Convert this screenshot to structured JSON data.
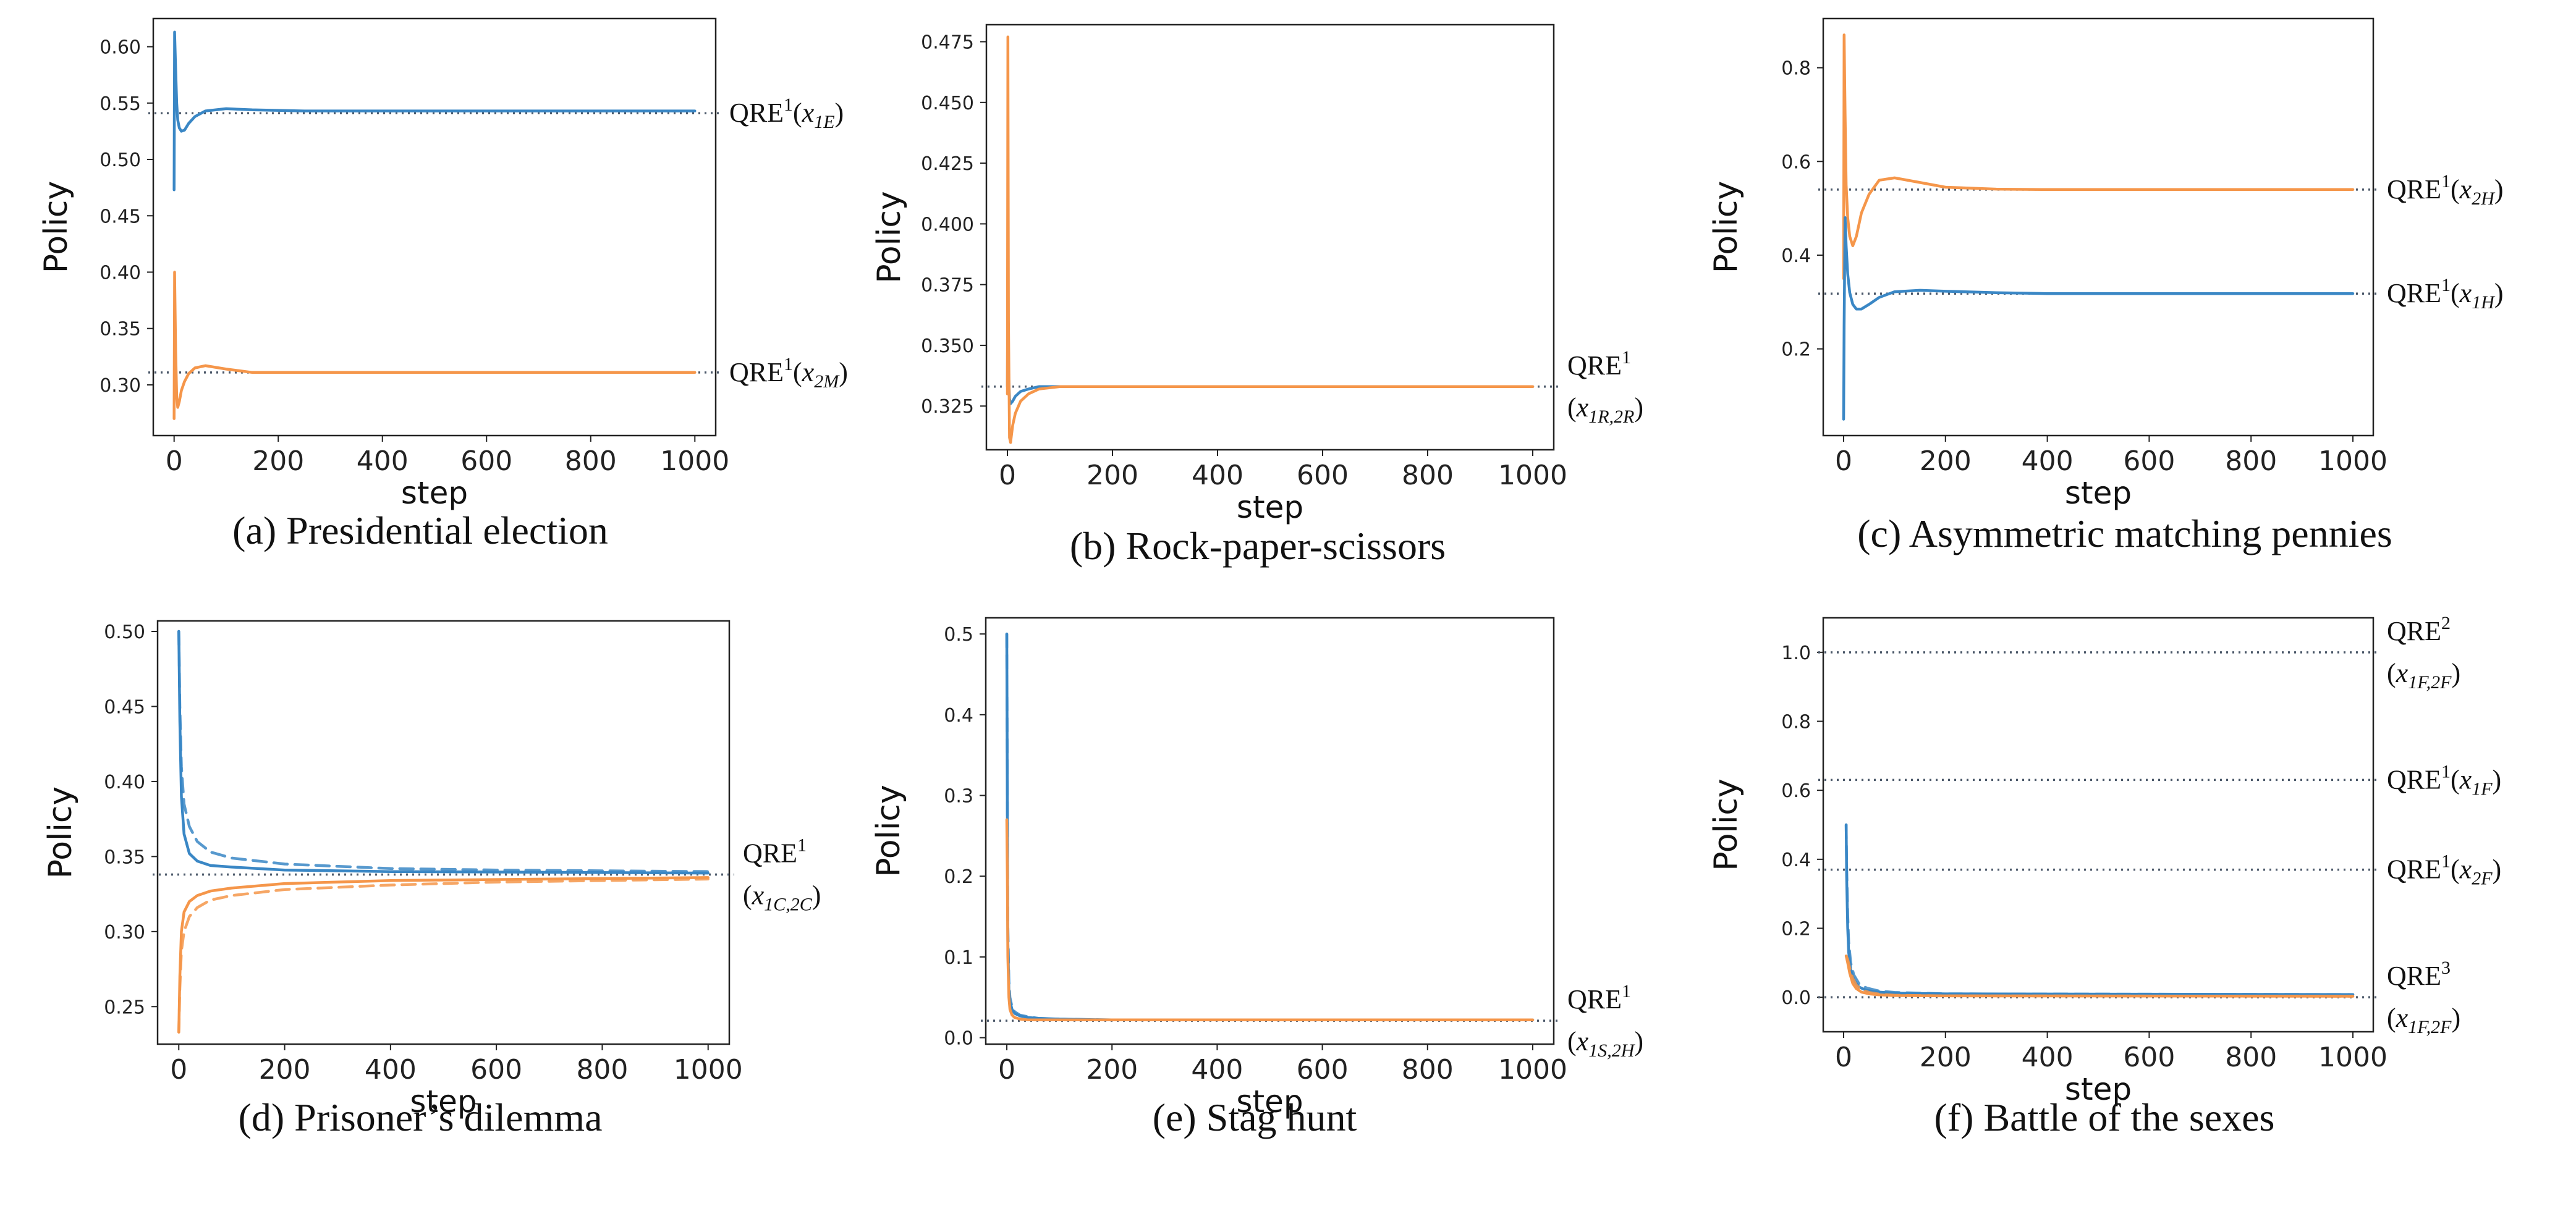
{
  "colors": {
    "blue": "#3a87c5",
    "orange": "#f5964a",
    "reference_line": "#4d5a6b",
    "frame": "#222222"
  },
  "chart_data": [
    {
      "id": "a",
      "type": "line",
      "caption": "(a) Presidential election",
      "xlabel": "step",
      "ylabel": "Policy",
      "xlim": [
        -40,
        1040
      ],
      "ylim": [
        0.255,
        0.625
      ],
      "xticks": [
        0,
        200,
        400,
        600,
        800,
        1000
      ],
      "yticks": [
        0.3,
        0.35,
        0.4,
        0.45,
        0.5,
        0.55,
        0.6
      ],
      "ytick_labels": [
        "0.30",
        "0.35",
        "0.40",
        "0.45",
        "0.50",
        "0.55",
        "0.60"
      ],
      "series": [
        {
          "color": "blue",
          "dash": false,
          "x": [
            0,
            1,
            3,
            5,
            7,
            10,
            14,
            20,
            28,
            40,
            60,
            100,
            150,
            250,
            400,
            1000
          ],
          "y": [
            0.473,
            0.613,
            0.58,
            0.55,
            0.535,
            0.528,
            0.525,
            0.526,
            0.532,
            0.538,
            0.543,
            0.545,
            0.544,
            0.543,
            0.543,
            0.543
          ]
        },
        {
          "color": "orange",
          "dash": false,
          "x": [
            0,
            1,
            3,
            5,
            7,
            10,
            14,
            20,
            28,
            40,
            60,
            100,
            150,
            250,
            400,
            1000
          ],
          "y": [
            0.27,
            0.4,
            0.33,
            0.29,
            0.28,
            0.285,
            0.295,
            0.303,
            0.31,
            0.315,
            0.317,
            0.314,
            0.311,
            0.311,
            0.311,
            0.311
          ]
        }
      ],
      "reference_lines": [
        {
          "y": 0.541,
          "label_parts": [
            "QRE",
            "1",
            "(",
            "x",
            "1E",
            ")"
          ]
        },
        {
          "y": 0.311,
          "label_parts": [
            "QRE",
            "1",
            "(",
            "x",
            "2M",
            ")"
          ]
        }
      ]
    },
    {
      "id": "b",
      "type": "line",
      "caption": "(b) Rock-paper-scissors",
      "xlabel": "step",
      "ylabel": "Policy",
      "xlim": [
        -40,
        1040
      ],
      "ylim": [
        0.307,
        0.482
      ],
      "xticks": [
        0,
        200,
        400,
        600,
        800,
        1000
      ],
      "yticks": [
        0.325,
        0.35,
        0.375,
        0.4,
        0.425,
        0.45,
        0.475
      ],
      "ytick_labels": [
        "0.325",
        "0.350",
        "0.375",
        "0.400",
        "0.425",
        "0.450",
        "0.475"
      ],
      "series": [
        {
          "color": "blue",
          "dash": false,
          "x": [
            0,
            1,
            2,
            4,
            6,
            10,
            15,
            25,
            40,
            60,
            100,
            200,
            1000
          ],
          "y": [
            0.333,
            0.38,
            0.34,
            0.328,
            0.326,
            0.327,
            0.329,
            0.331,
            0.332,
            0.333,
            0.333,
            0.333,
            0.333
          ]
        },
        {
          "color": "orange",
          "dash": false,
          "x": [
            0,
            1,
            2,
            4,
            6,
            10,
            15,
            25,
            40,
            60,
            100,
            200,
            1000
          ],
          "y": [
            0.33,
            0.477,
            0.36,
            0.312,
            0.31,
            0.317,
            0.322,
            0.327,
            0.33,
            0.332,
            0.333,
            0.333,
            0.333
          ]
        }
      ],
      "reference_lines": [
        {
          "y": 0.333,
          "label_lines": [
            [
              "QRE",
              "1"
            ],
            [
              "(",
              "x",
              "1R,2R",
              ")"
            ]
          ]
        }
      ]
    },
    {
      "id": "c",
      "type": "line",
      "caption": "(c) Asymmetric matching pennies",
      "xlabel": "step",
      "ylabel": "Policy",
      "xlim": [
        -40,
        1040
      ],
      "ylim": [
        0.015,
        0.905
      ],
      "xticks": [
        0,
        200,
        400,
        600,
        800,
        1000
      ],
      "yticks": [
        0.2,
        0.4,
        0.6,
        0.8
      ],
      "ytick_labels": [
        "0.2",
        "0.4",
        "0.6",
        "0.8"
      ],
      "series": [
        {
          "color": "orange",
          "dash": false,
          "x": [
            0,
            1,
            3,
            5,
            8,
            12,
            18,
            25,
            35,
            50,
            70,
            100,
            150,
            200,
            300,
            400,
            1000
          ],
          "y": [
            0.35,
            0.87,
            0.7,
            0.55,
            0.48,
            0.44,
            0.42,
            0.44,
            0.49,
            0.53,
            0.56,
            0.565,
            0.555,
            0.545,
            0.541,
            0.54,
            0.54
          ]
        },
        {
          "color": "blue",
          "dash": false,
          "x": [
            0,
            1,
            3,
            5,
            8,
            12,
            18,
            25,
            35,
            50,
            70,
            100,
            150,
            200,
            300,
            400,
            1000
          ],
          "y": [
            0.05,
            0.25,
            0.48,
            0.42,
            0.36,
            0.32,
            0.295,
            0.285,
            0.285,
            0.295,
            0.31,
            0.322,
            0.325,
            0.323,
            0.32,
            0.318,
            0.318
          ]
        }
      ],
      "reference_lines": [
        {
          "y": 0.54,
          "label_parts": [
            "QRE",
            "1",
            "(",
            "x",
            "2H",
            ")"
          ]
        },
        {
          "y": 0.318,
          "label_parts": [
            "QRE",
            "1",
            "(",
            "x",
            "1H",
            ")"
          ]
        }
      ]
    },
    {
      "id": "d",
      "type": "line",
      "caption": "(d) Prisoner’s dilemma",
      "xlabel": "step",
      "ylabel": "Policy",
      "xlim": [
        -40,
        1040
      ],
      "ylim": [
        0.225,
        0.507
      ],
      "xticks": [
        0,
        200,
        400,
        600,
        800,
        1000
      ],
      "yticks": [
        0.25,
        0.3,
        0.35,
        0.4,
        0.45,
        0.5
      ],
      "ytick_labels": [
        "0.25",
        "0.30",
        "0.35",
        "0.40",
        "0.45",
        "0.50"
      ],
      "series": [
        {
          "color": "blue",
          "dash": false,
          "x": [
            0,
            2,
            5,
            10,
            20,
            35,
            60,
            100,
            200,
            400,
            1000
          ],
          "y": [
            0.5,
            0.44,
            0.39,
            0.365,
            0.352,
            0.347,
            0.344,
            0.343,
            0.341,
            0.34,
            0.339
          ]
        },
        {
          "color": "blue",
          "dash": true,
          "x": [
            0,
            2,
            5,
            10,
            20,
            35,
            60,
            100,
            200,
            400,
            600,
            1000
          ],
          "y": [
            0.5,
            0.45,
            0.41,
            0.385,
            0.37,
            0.36,
            0.353,
            0.349,
            0.345,
            0.342,
            0.341,
            0.34
          ]
        },
        {
          "color": "orange",
          "dash": false,
          "x": [
            0,
            2,
            5,
            10,
            20,
            35,
            60,
            100,
            200,
            400,
            1000
          ],
          "y": [
            0.233,
            0.27,
            0.3,
            0.313,
            0.32,
            0.324,
            0.327,
            0.329,
            0.332,
            0.334,
            0.336
          ]
        },
        {
          "color": "orange",
          "dash": true,
          "x": [
            0,
            2,
            5,
            10,
            20,
            35,
            60,
            100,
            200,
            400,
            600,
            1000
          ],
          "y": [
            0.233,
            0.262,
            0.287,
            0.3,
            0.31,
            0.316,
            0.321,
            0.324,
            0.328,
            0.331,
            0.333,
            0.335
          ]
        }
      ],
      "reference_lines": [
        {
          "y": 0.338,
          "label_lines": [
            [
              "QRE",
              "1"
            ],
            [
              "(",
              "x",
              "1C,2C",
              ")"
            ]
          ]
        }
      ]
    },
    {
      "id": "e",
      "type": "line",
      "caption": "(e) Stag hunt",
      "xlabel": "step",
      "ylabel": "Policy",
      "xlim": [
        -40,
        1040
      ],
      "ylim": [
        -0.008,
        0.52
      ],
      "xticks": [
        0,
        200,
        400,
        600,
        800,
        1000
      ],
      "yticks": [
        0.0,
        0.1,
        0.2,
        0.3,
        0.4,
        0.5
      ],
      "ytick_labels": [
        "0.0",
        "0.1",
        "0.2",
        "0.3",
        "0.4",
        "0.5"
      ],
      "series": [
        {
          "color": "blue",
          "dash": false,
          "x": [
            0,
            1,
            2,
            4,
            6,
            10,
            15,
            25,
            40,
            60,
            100,
            200,
            1000
          ],
          "y": [
            0.5,
            0.28,
            0.12,
            0.06,
            0.045,
            0.035,
            0.03,
            0.027,
            0.025,
            0.024,
            0.023,
            0.022,
            0.022
          ]
        },
        {
          "color": "blue",
          "dash": true,
          "x": [
            0,
            1,
            2,
            4,
            6,
            10,
            15,
            25,
            40,
            60,
            100,
            200,
            1000
          ],
          "y": [
            0.5,
            0.3,
            0.14,
            0.07,
            0.05,
            0.038,
            0.032,
            0.028,
            0.026,
            0.024,
            0.023,
            0.022,
            0.022
          ]
        },
        {
          "color": "orange",
          "dash": false,
          "x": [
            0,
            1,
            2,
            4,
            6,
            10,
            15,
            25,
            40,
            60,
            100,
            200,
            1000
          ],
          "y": [
            0.27,
            0.2,
            0.1,
            0.05,
            0.035,
            0.028,
            0.025,
            0.023,
            0.022,
            0.022,
            0.022,
            0.022,
            0.022
          ]
        }
      ],
      "reference_lines": [
        {
          "y": 0.021,
          "label_lines": [
            [
              "QRE",
              "1"
            ],
            [
              "(",
              "x",
              "1S,2H",
              ")"
            ]
          ]
        }
      ]
    },
    {
      "id": "f",
      "type": "line",
      "caption": "(f) Battle of the sexes",
      "xlabel": "step",
      "ylabel": "Policy",
      "xlim": [
        -40,
        1040
      ],
      "ylim": [
        -0.1,
        1.1
      ],
      "xticks": [
        0,
        200,
        400,
        600,
        800,
        1000
      ],
      "yticks": [
        0.0,
        0.2,
        0.4,
        0.6,
        0.8,
        1.0
      ],
      "ytick_labels": [
        "0.0",
        "0.2",
        "0.4",
        "0.6",
        "0.8",
        "1.0"
      ],
      "series": [
        {
          "color": "blue",
          "dash": false,
          "x": [
            5,
            6,
            8,
            10,
            14,
            20,
            30,
            45,
            70,
            100,
            200,
            1000
          ],
          "y": [
            0.5,
            0.35,
            0.2,
            0.13,
            0.08,
            0.05,
            0.03,
            0.02,
            0.015,
            0.012,
            0.01,
            0.008
          ]
        },
        {
          "color": "blue",
          "dash": true,
          "x": [
            5,
            6,
            8,
            10,
            14,
            20,
            30,
            45,
            70,
            100,
            200,
            1000
          ],
          "y": [
            0.5,
            0.38,
            0.24,
            0.16,
            0.1,
            0.065,
            0.04,
            0.027,
            0.018,
            0.014,
            0.01,
            0.008
          ]
        },
        {
          "color": "orange",
          "dash": false,
          "x": [
            5,
            8,
            12,
            18,
            25,
            35,
            50,
            70,
            100,
            200,
            1000
          ],
          "y": [
            0.12,
            0.1,
            0.07,
            0.04,
            0.025,
            0.015,
            0.01,
            0.007,
            0.005,
            0.004,
            0.003
          ]
        },
        {
          "color": "orange",
          "dash": true,
          "x": [
            5,
            8,
            12,
            18,
            25,
            35,
            50,
            70,
            100,
            200,
            1000
          ],
          "y": [
            0.12,
            0.11,
            0.085,
            0.055,
            0.035,
            0.022,
            0.014,
            0.009,
            0.006,
            0.004,
            0.003
          ]
        }
      ],
      "reference_lines": [
        {
          "y": 1.0,
          "label_lines": [
            [
              "QRE",
              "2"
            ],
            [
              "(",
              "x",
              "1F,2F",
              ")"
            ]
          ]
        },
        {
          "y": 0.63,
          "label_parts": [
            "QRE",
            "1",
            "(",
            "x",
            "1F",
            ")"
          ]
        },
        {
          "y": 0.37,
          "label_parts": [
            "QRE",
            "1",
            "(",
            "x",
            "2F",
            ")"
          ]
        },
        {
          "y": 0.0,
          "label_lines": [
            [
              "QRE",
              "3"
            ],
            [
              "(",
              "x",
              "1F,2F",
              ")"
            ]
          ]
        }
      ]
    }
  ]
}
